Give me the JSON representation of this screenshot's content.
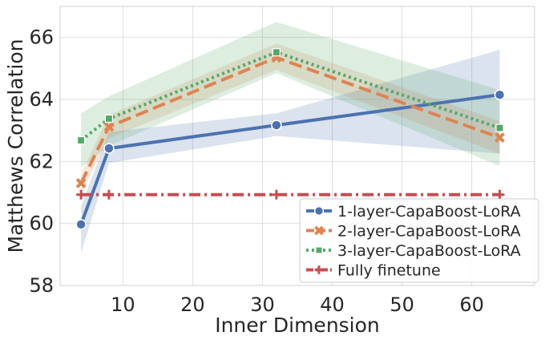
{
  "chart_data": {
    "type": "line",
    "title": "",
    "xlabel": "Inner Dimension",
    "ylabel": "Matthews Correlation",
    "xlim": [
      1,
      69
    ],
    "ylim": [
      58,
      67
    ],
    "xticks": [
      10,
      20,
      30,
      40,
      50,
      60
    ],
    "yticks": [
      58,
      60,
      62,
      64,
      66
    ],
    "grid": true,
    "legend_position": "lower-right",
    "series": [
      {
        "name": "1-layer-CapaBoost-LoRA",
        "color": "#4c72b0",
        "linestyle": "solid",
        "marker": "circle",
        "x": [
          4,
          8,
          32,
          64
        ],
        "y": [
          59.97,
          62.42,
          63.17,
          64.15
        ],
        "ci_low": [
          59.05,
          61.95,
          62.82,
          62.25
        ],
        "ci_high": [
          60.55,
          62.95,
          63.55,
          65.6
        ]
      },
      {
        "name": "2-layer-CapaBoost-LoRA",
        "color": "#dd8452",
        "linestyle": "dashed",
        "marker": "x",
        "x": [
          4,
          8,
          32,
          64
        ],
        "y": [
          61.3,
          63.12,
          65.35,
          62.77
        ],
        "ci_low": [
          60.95,
          62.75,
          64.95,
          62.25
        ],
        "ci_high": [
          61.6,
          63.5,
          65.8,
          63.3
        ]
      },
      {
        "name": "3-layer-CapaBoost-LoRA",
        "color": "#55a868",
        "linestyle": "dotted",
        "marker": "square",
        "x": [
          4,
          8,
          32,
          64
        ],
        "y": [
          62.68,
          63.38,
          65.52,
          63.08
        ],
        "ci_low": [
          61.8,
          62.5,
          64.85,
          61.85
        ],
        "ci_high": [
          63.55,
          64.1,
          66.5,
          64.3
        ]
      },
      {
        "name": "Fully finetune",
        "color": "#c44e52",
        "linestyle": "dashdot",
        "marker": "plus",
        "x": [
          4,
          8,
          32,
          64
        ],
        "y": [
          60.93,
          60.93,
          60.93,
          60.93
        ]
      }
    ]
  }
}
